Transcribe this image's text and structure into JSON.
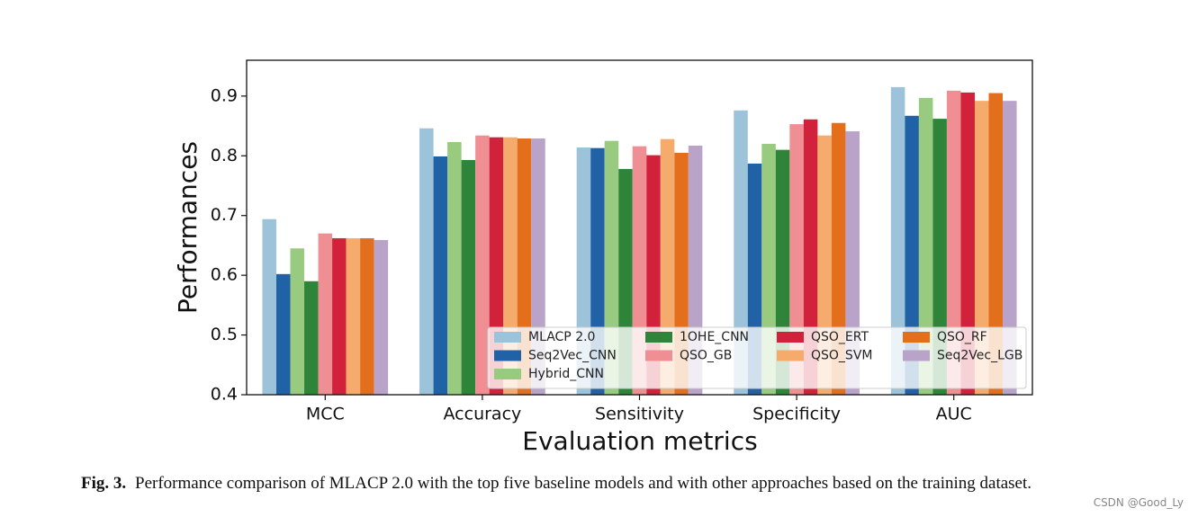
{
  "chart_data": {
    "type": "bar",
    "categories": [
      "MCC",
      "Accuracy",
      "Sensitivity",
      "Specificity",
      "AUC"
    ],
    "series": [
      {
        "name": "MLACP 2.0",
        "color": "#9dc3da",
        "values": [
          0.694,
          0.846,
          0.814,
          0.876,
          0.915
        ]
      },
      {
        "name": "Seq2Vec_CNN",
        "color": "#2161a5",
        "values": [
          0.602,
          0.799,
          0.813,
          0.787,
          0.867
        ]
      },
      {
        "name": "Hybrid_CNN",
        "color": "#98ca80",
        "values": [
          0.645,
          0.823,
          0.825,
          0.82,
          0.897
        ]
      },
      {
        "name": "1OHE_CNN",
        "color": "#2e853a",
        "values": [
          0.59,
          0.793,
          0.778,
          0.81,
          0.862
        ]
      },
      {
        "name": "QSO_GB",
        "color": "#ef8f93",
        "values": [
          0.67,
          0.834,
          0.816,
          0.853,
          0.909
        ]
      },
      {
        "name": "QSO_ERT",
        "color": "#d2213b",
        "values": [
          0.662,
          0.831,
          0.801,
          0.861,
          0.906
        ]
      },
      {
        "name": "QSO_SVM",
        "color": "#f5ab6b",
        "values": [
          0.662,
          0.831,
          0.828,
          0.834,
          0.892
        ]
      },
      {
        "name": "QSO_RF",
        "color": "#e36e1c",
        "values": [
          0.662,
          0.829,
          0.805,
          0.855,
          0.905
        ]
      },
      {
        "name": "Seq2Vec_LGB",
        "color": "#b9a3c9",
        "values": [
          0.659,
          0.829,
          0.817,
          0.841,
          0.892
        ]
      }
    ],
    "ylim": [
      0.4,
      0.96
    ],
    "yticks": [
      0.4,
      0.5,
      0.6,
      0.7,
      0.8,
      0.9
    ],
    "ylabel": "Performances",
    "xlabel": "Evaluation metrics",
    "legend": "lower right",
    "legend_columns": 4
  },
  "caption": {
    "label": "Fig. 3.",
    "text": "Performance comparison of MLACP 2.0 with the top five baseline models and with other approaches based on the training dataset."
  },
  "watermark": "CSDN @Good_Ly"
}
